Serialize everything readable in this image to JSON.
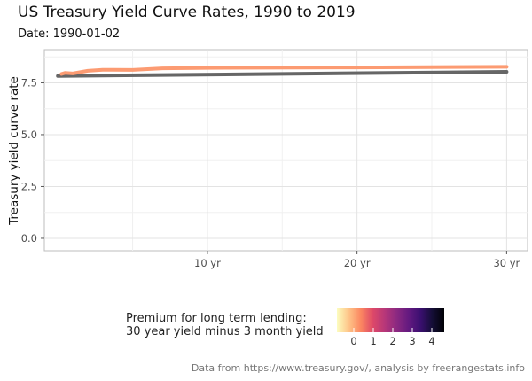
{
  "title": "US Treasury Yield Curve Rates, 1990 to 2019",
  "subtitle": "Date: 1990-01-02",
  "caption": "Data from https://www.treasury.gov/, analysis by freerangestats.info",
  "legend": {
    "title_line1": "Premium for long term lending:",
    "title_line2": "30 year yield minus 3 month yield",
    "ticks": [
      "0",
      "1",
      "2",
      "3",
      "4"
    ],
    "colors": [
      "#fcfdbf",
      "#fec488",
      "#fb8761",
      "#de4968",
      "#b73779",
      "#8c2981",
      "#641a80",
      "#3b0f70",
      "#140e36",
      "#000004"
    ]
  },
  "chart_data": {
    "type": "line",
    "title": "US Treasury Yield Curve Rates, 1990 to 2019",
    "subtitle": "Date: 1990-01-02",
    "ylabel": "Treasury yield curve rate",
    "xlabel": "",
    "xlim": [
      -0.9,
      31.4
    ],
    "ylim": [
      -0.6,
      9.1
    ],
    "x_ticks": [
      10,
      20,
      30
    ],
    "x_tick_labels": [
      "10 yr",
      "20 yr",
      "30 yr"
    ],
    "y_ticks": [
      0,
      2.5,
      5,
      7.5
    ],
    "y_tick_labels": [
      "0.0",
      "2.5",
      "5.0",
      "7.5"
    ],
    "grid": true,
    "series": [
      {
        "color": "#fc9b72",
        "x": [
          0.25,
          0.5,
          1,
          2,
          3,
          5,
          7,
          10,
          20,
          30
        ],
        "y": [
          7.83,
          7.89,
          7.81,
          7.87,
          7.9,
          7.87,
          7.98,
          7.94,
          7.98,
          8.0
        ],
        "y_rendered": [
          7.93,
          7.98,
          7.95,
          8.08,
          8.13,
          8.12,
          8.2,
          8.22,
          8.24,
          8.27
        ]
      },
      {
        "color": "#666666",
        "x": [
          0,
          30
        ],
        "y": [
          7.83,
          8.0
        ],
        "y_rendered": [
          7.83,
          8.03
        ]
      }
    ]
  }
}
